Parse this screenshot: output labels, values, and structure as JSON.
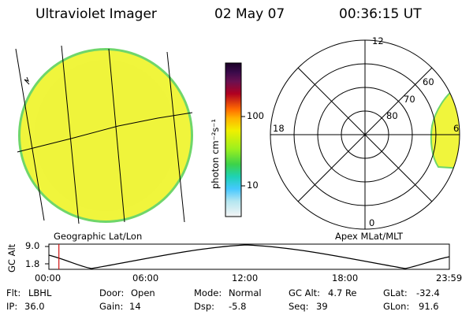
{
  "header": {
    "instrument": "Ultraviolet Imager",
    "date": "02 May 07",
    "time": "00:36:15 UT"
  },
  "colorbar": {
    "unit_label": "photon cm⁻²s⁻¹",
    "tick_100": "100",
    "tick_10": "10"
  },
  "left_panel": {
    "label": "Geographic Lat/Lon",
    "marker": "∡"
  },
  "right_panel": {
    "label": "Apex MLat/MLT",
    "mlt_12": "12",
    "mlt_18": "18",
    "mlt_0": "0",
    "mlt_6": "6",
    "mlat_60": "60",
    "mlat_70": "70",
    "mlat_80": "80"
  },
  "altitude_plot": {
    "axis_label": "GC Alt",
    "y_top": "9.0",
    "y_bottom": "1.8",
    "x_ticks": [
      "00:00",
      "06:00",
      "12:00",
      "18:00",
      "23:59"
    ],
    "current_time_fraction": 0.025
  },
  "status": {
    "filter_label": "Flt:",
    "filter_value": "LBHL",
    "ip_label": "IP:",
    "ip_value": "36.0",
    "door_label": "Door:",
    "door_value": "Open",
    "gain_label": "Gain:",
    "gain_value": "14",
    "mode_label": "Mode:",
    "mode_value": "Normal",
    "dsp_label": "Dsp:",
    "dsp_value": "-5.8",
    "gcalt_label": "GC Alt:",
    "gcalt_value": "4.7 Re",
    "seq_label": "Seq:",
    "seq_value": "39",
    "glat_label": "GLat:",
    "glat_value": "-32.4",
    "glon_label": "GLon:",
    "glon_value": "91.6"
  },
  "colors": {
    "disk": "#f0f53c",
    "disk_edge": "#9be65a",
    "aurora_band": "#c8f03c",
    "current_time_line": "#d01010"
  }
}
